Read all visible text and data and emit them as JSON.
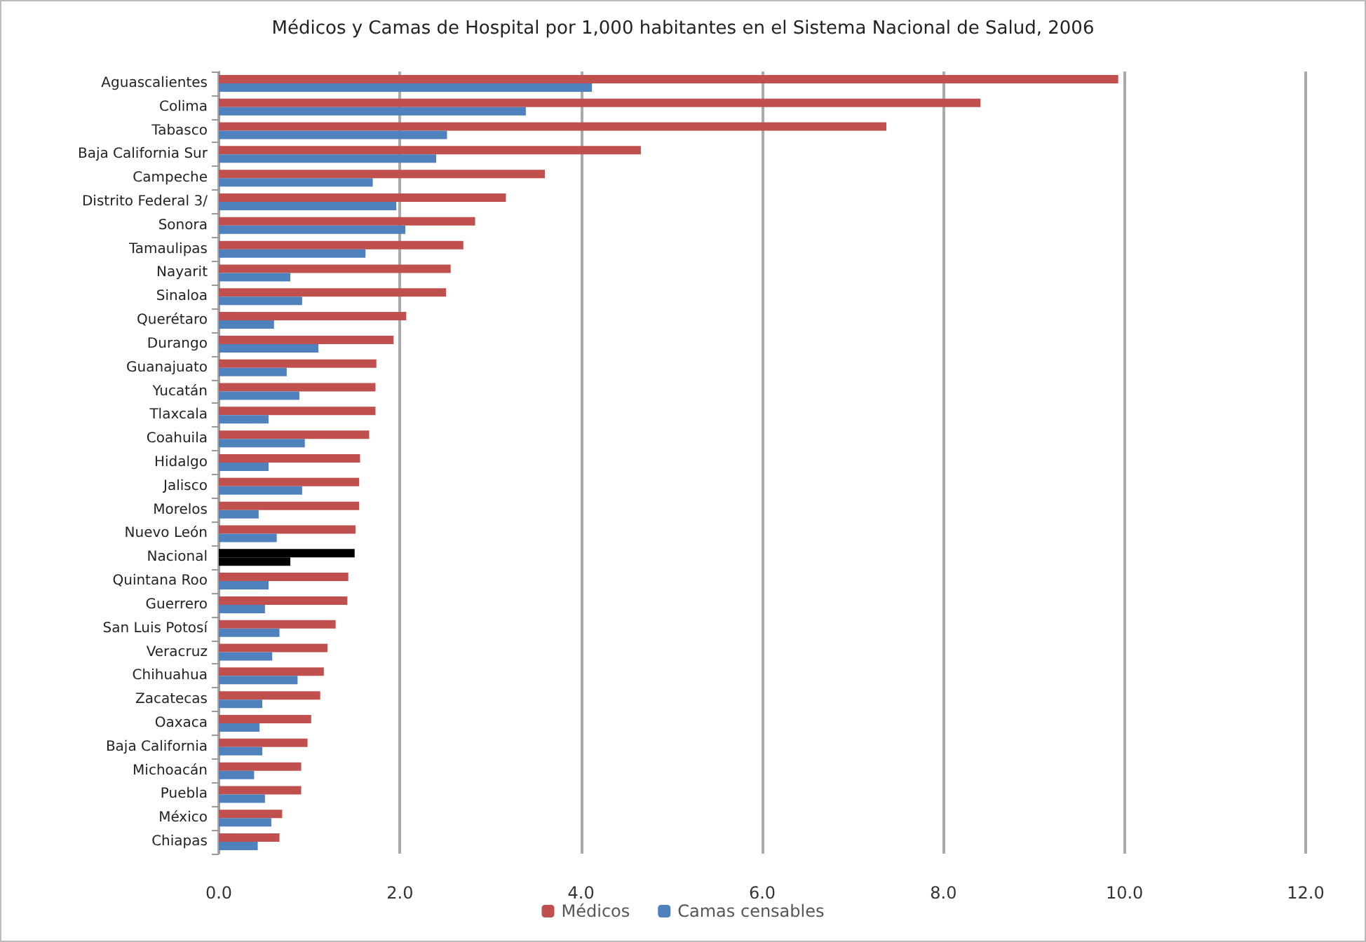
{
  "chart_data": {
    "type": "bar",
    "orientation": "horizontal",
    "title": "Médicos y Camas de Hospital por 1,000 habitantes en el Sistema Nacional de Salud, 2006",
    "categories": [
      "Aguascalientes",
      "Colima",
      "Tabasco",
      "Baja California Sur",
      "Campeche",
      "Distrito Federal 3/",
      "Sonora",
      "Tamaulipas",
      "Nayarit",
      "Sinaloa",
      "Querétaro",
      "Durango",
      "Guanajuato",
      "Yucatán",
      "Tlaxcala",
      "Coahuila",
      "Hidalgo",
      "Jalisco",
      "Morelos",
      "Nuevo León",
      "Nacional",
      "Quintana Roo",
      "Guerrero",
      "San Luis Potosí",
      "Veracruz",
      "Chihuahua",
      "Zacatecas",
      "Oaxaca",
      "Baja California",
      "Michoacán",
      "Puebla",
      "México",
      "Chiapas"
    ],
    "series": [
      {
        "name": "Médicos",
        "color": "#c0504d",
        "colors": [
          "#c0504d",
          "#c0504d",
          "#c0504d",
          "#c0504d",
          "#c0504d",
          "#c0504d",
          "#c0504d",
          "#c0504d",
          "#c0504d",
          "#c0504d",
          "#c0504d",
          "#c0504d",
          "#c0504d",
          "#c0504d",
          "#c0504d",
          "#c0504d",
          "#c0504d",
          "#c0504d",
          "#c0504d",
          "#c0504d",
          "#000000",
          "#c0504d",
          "#c0504d",
          "#c0504d",
          "#c0504d",
          "#c0504d",
          "#c0504d",
          "#c0504d",
          "#c0504d",
          "#c0504d",
          "#c0504d",
          "#c0504d",
          "#c0504d"
        ],
        "values": [
          9.93,
          8.41,
          7.37,
          4.66,
          3.6,
          3.17,
          2.83,
          2.7,
          2.56,
          2.51,
          2.07,
          1.93,
          1.74,
          1.73,
          1.73,
          1.66,
          1.56,
          1.55,
          1.55,
          1.51,
          1.5,
          1.43,
          1.42,
          1.29,
          1.2,
          1.16,
          1.12,
          1.02,
          0.98,
          0.91,
          0.91,
          0.7,
          0.67
        ]
      },
      {
        "name": "Camas censables",
        "color": "#4f81bd",
        "colors": [
          "#4f81bd",
          "#4f81bd",
          "#4f81bd",
          "#4f81bd",
          "#4f81bd",
          "#4f81bd",
          "#4f81bd",
          "#4f81bd",
          "#4f81bd",
          "#4f81bd",
          "#4f81bd",
          "#4f81bd",
          "#4f81bd",
          "#4f81bd",
          "#4f81bd",
          "#4f81bd",
          "#4f81bd",
          "#4f81bd",
          "#4f81bd",
          "#4f81bd",
          "#000000",
          "#4f81bd",
          "#4f81bd",
          "#4f81bd",
          "#4f81bd",
          "#4f81bd",
          "#4f81bd",
          "#4f81bd",
          "#4f81bd",
          "#4f81bd",
          "#4f81bd",
          "#4f81bd",
          "#4f81bd"
        ],
        "values": [
          4.12,
          3.39,
          2.52,
          2.4,
          1.7,
          1.96,
          2.06,
          1.62,
          0.79,
          0.92,
          0.61,
          1.1,
          0.75,
          0.89,
          0.55,
          0.95,
          0.55,
          0.92,
          0.44,
          0.64,
          0.79,
          0.55,
          0.51,
          0.67,
          0.59,
          0.87,
          0.48,
          0.45,
          0.48,
          0.39,
          0.51,
          0.58,
          0.43
        ]
      }
    ],
    "xlim": [
      0,
      12
    ],
    "xticks": [
      {
        "value": 0,
        "label": "0.0"
      },
      {
        "value": 2,
        "label": "2.0"
      },
      {
        "value": 4,
        "label": "4.0"
      },
      {
        "value": 6,
        "label": "6.0"
      },
      {
        "value": 8,
        "label": "8.0"
      },
      {
        "value": 10,
        "label": "10.0"
      },
      {
        "value": 12,
        "label": "12.0"
      }
    ],
    "grid": "x",
    "legend": "bottom"
  }
}
